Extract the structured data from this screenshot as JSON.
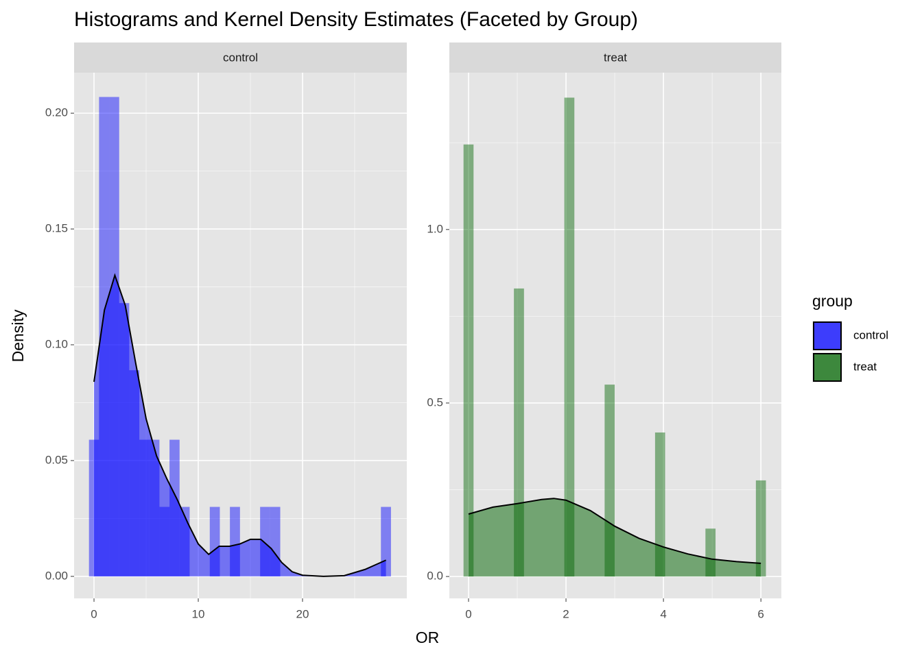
{
  "chart_data": {
    "type": "histogram",
    "title": "Histograms and Kernel Density Estimates (Faceted by Group)",
    "x_label": "OR",
    "y_label": "Density",
    "legend_title": "group",
    "grid": true,
    "facets": [
      {
        "name": "control",
        "color": "#0000ff",
        "bins": [
          -0.483,
          0.483,
          1.448,
          2.414,
          3.379,
          4.345,
          5.31,
          6.276,
          7.241,
          8.207,
          9.172,
          10.138,
          11.103,
          12.069,
          13.034,
          14.0,
          14.966,
          15.931,
          16.897,
          17.862,
          18.828,
          19.793,
          20.759,
          21.724,
          22.69,
          23.655,
          24.621,
          25.586,
          26.552,
          27.517,
          28.483
        ],
        "values": [
          0.059,
          0.207,
          0.207,
          0.118,
          0.089,
          0.059,
          0.059,
          0.03,
          0.059,
          0.03,
          0,
          0,
          0.03,
          0,
          0.03,
          0,
          0,
          0.03,
          0.03,
          0,
          0,
          0,
          0,
          0,
          0,
          0,
          0,
          0,
          0,
          0.03
        ],
        "density": {
          "x": [
            0,
            1,
            2,
            3,
            4,
            5,
            6,
            7,
            8,
            9,
            10,
            11,
            12,
            13,
            14,
            15,
            16,
            17,
            18,
            19,
            20,
            22,
            24,
            26,
            27,
            28
          ],
          "y": [
            0.084,
            0.115,
            0.13,
            0.117,
            0.092,
            0.068,
            0.052,
            0.042,
            0.033,
            0.023,
            0.014,
            0.0095,
            0.013,
            0.013,
            0.014,
            0.016,
            0.016,
            0.012,
            0.006,
            0.002,
            0.0005,
            0,
            0.0003,
            0.003,
            0.005,
            0.007
          ]
        },
        "xlim": [
          -1.91,
          30.0
        ],
        "ylim": [
          -0.0095,
          0.2175
        ],
        "xticks": [
          0,
          10,
          20
        ],
        "yticks": [
          {
            "value": 0,
            "label": "0.00"
          },
          {
            "value": 0.05,
            "label": "0.05"
          },
          {
            "value": 0.1,
            "label": "0.10"
          },
          {
            "value": 0.15,
            "label": "0.15"
          },
          {
            "value": 0.2,
            "label": "0.20"
          }
        ]
      },
      {
        "name": "treat",
        "color": "#006400",
        "bins": [
          -0.103,
          0.103,
          0.31,
          0.517,
          0.724,
          0.931,
          1.138,
          1.345,
          1.552,
          1.759,
          1.966,
          2.172,
          2.379,
          2.586,
          2.793,
          3.0,
          3.207,
          3.414,
          3.621,
          3.828,
          4.034,
          4.241,
          4.448,
          4.655,
          4.862,
          5.069,
          5.276,
          5.483,
          5.69,
          5.897,
          6.103
        ],
        "values": [
          1.245,
          0,
          0,
          0,
          0,
          0.83,
          0,
          0,
          0,
          0,
          1.38,
          0,
          0,
          0,
          0.553,
          0,
          0,
          0,
          0,
          0.415,
          0,
          0,
          0,
          0,
          0.138,
          0,
          0,
          0,
          0,
          0.277
        ],
        "density": {
          "x": [
            0,
            0.5,
            1,
            1.5,
            1.75,
            2,
            2.5,
            3,
            3.5,
            4,
            4.5,
            5,
            5.5,
            6
          ],
          "y": [
            0.18,
            0.2,
            0.21,
            0.222,
            0.225,
            0.22,
            0.19,
            0.145,
            0.11,
            0.085,
            0.065,
            0.05,
            0.043,
            0.038
          ]
        },
        "xlim": [
          -0.394,
          6.42
        ],
        "ylim": [
          -0.063,
          1.452
        ],
        "xticks": [
          0,
          2,
          4,
          6
        ],
        "yticks": [
          {
            "value": 0,
            "label": "0.0"
          },
          {
            "value": 0.5,
            "label": "0.5"
          },
          {
            "value": 1,
            "label": "1.0"
          }
        ]
      }
    ]
  }
}
